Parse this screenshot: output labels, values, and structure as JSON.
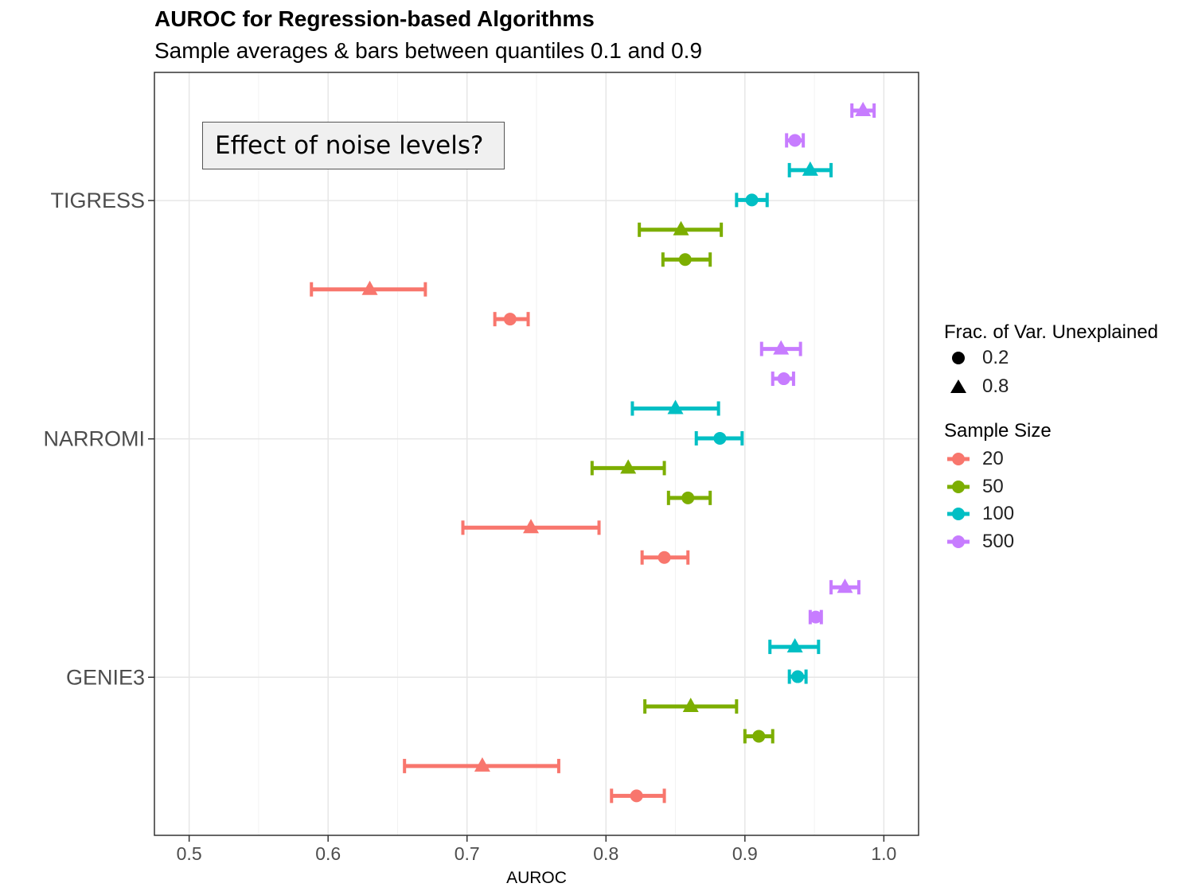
{
  "title": "AUROC for Regression-based Algorithms",
  "subtitle": "Sample averages & bars between quantiles 0.1 and 0.9",
  "annotation": "Effect of noise levels?",
  "legend": {
    "shape_title": "Frac. of Var. Unexplained",
    "shapes": [
      {
        "label": "0.2",
        "shape": "circle-icon"
      },
      {
        "label": "0.8",
        "shape": "triangle-icon"
      }
    ],
    "color_title": "Sample Size",
    "colors": [
      {
        "label": "20",
        "color": "#F8766D"
      },
      {
        "label": "50",
        "color": "#7CAE00"
      },
      {
        "label": "100",
        "color": "#00BFC4"
      },
      {
        "label": "500",
        "color": "#C77CFF"
      }
    ]
  },
  "chart_data": {
    "type": "scatter",
    "title": "AUROC for Regression-based Algorithms",
    "subtitle": "Sample averages & bars between quantiles 0.1 and 0.9",
    "xlabel": "AUROC",
    "ylabel": "",
    "xlim": [
      0.475,
      1.025
    ],
    "x_ticks": [
      "0.5",
      "0.6",
      "0.7",
      "0.8",
      "0.9",
      "1.0"
    ],
    "y_categories": [
      "TIGRESS",
      "NARROMI",
      "GENIE3"
    ],
    "grid": true,
    "legend_position": "right",
    "points": [
      {
        "algorithm": "TIGRESS",
        "sample_size": "500",
        "frac": "0.8",
        "mean": 0.985,
        "q10": 0.977,
        "q90": 0.993
      },
      {
        "algorithm": "TIGRESS",
        "sample_size": "500",
        "frac": "0.2",
        "mean": 0.936,
        "q10": 0.93,
        "q90": 0.942
      },
      {
        "algorithm": "TIGRESS",
        "sample_size": "100",
        "frac": "0.8",
        "mean": 0.947,
        "q10": 0.932,
        "q90": 0.962
      },
      {
        "algorithm": "TIGRESS",
        "sample_size": "100",
        "frac": "0.2",
        "mean": 0.905,
        "q10": 0.894,
        "q90": 0.916
      },
      {
        "algorithm": "TIGRESS",
        "sample_size": "50",
        "frac": "0.8",
        "mean": 0.854,
        "q10": 0.824,
        "q90": 0.883
      },
      {
        "algorithm": "TIGRESS",
        "sample_size": "50",
        "frac": "0.2",
        "mean": 0.857,
        "q10": 0.841,
        "q90": 0.875
      },
      {
        "algorithm": "TIGRESS",
        "sample_size": "20",
        "frac": "0.8",
        "mean": 0.63,
        "q10": 0.588,
        "q90": 0.67
      },
      {
        "algorithm": "TIGRESS",
        "sample_size": "20",
        "frac": "0.2",
        "mean": 0.731,
        "q10": 0.72,
        "q90": 0.744
      },
      {
        "algorithm": "NARROMI",
        "sample_size": "500",
        "frac": "0.8",
        "mean": 0.926,
        "q10": 0.912,
        "q90": 0.94
      },
      {
        "algorithm": "NARROMI",
        "sample_size": "500",
        "frac": "0.2",
        "mean": 0.928,
        "q10": 0.92,
        "q90": 0.935
      },
      {
        "algorithm": "NARROMI",
        "sample_size": "100",
        "frac": "0.8",
        "mean": 0.85,
        "q10": 0.819,
        "q90": 0.881
      },
      {
        "algorithm": "NARROMI",
        "sample_size": "100",
        "frac": "0.2",
        "mean": 0.882,
        "q10": 0.865,
        "q90": 0.898
      },
      {
        "algorithm": "NARROMI",
        "sample_size": "50",
        "frac": "0.8",
        "mean": 0.816,
        "q10": 0.79,
        "q90": 0.842
      },
      {
        "algorithm": "NARROMI",
        "sample_size": "50",
        "frac": "0.2",
        "mean": 0.859,
        "q10": 0.845,
        "q90": 0.875
      },
      {
        "algorithm": "NARROMI",
        "sample_size": "20",
        "frac": "0.8",
        "mean": 0.746,
        "q10": 0.697,
        "q90": 0.795
      },
      {
        "algorithm": "NARROMI",
        "sample_size": "20",
        "frac": "0.2",
        "mean": 0.842,
        "q10": 0.826,
        "q90": 0.859
      },
      {
        "algorithm": "GENIE3",
        "sample_size": "500",
        "frac": "0.8",
        "mean": 0.972,
        "q10": 0.962,
        "q90": 0.982
      },
      {
        "algorithm": "GENIE3",
        "sample_size": "500",
        "frac": "0.2",
        "mean": 0.951,
        "q10": 0.947,
        "q90": 0.955
      },
      {
        "algorithm": "GENIE3",
        "sample_size": "100",
        "frac": "0.8",
        "mean": 0.936,
        "q10": 0.918,
        "q90": 0.953
      },
      {
        "algorithm": "GENIE3",
        "sample_size": "100",
        "frac": "0.2",
        "mean": 0.938,
        "q10": 0.932,
        "q90": 0.944
      },
      {
        "algorithm": "GENIE3",
        "sample_size": "50",
        "frac": "0.8",
        "mean": 0.861,
        "q10": 0.828,
        "q90": 0.894
      },
      {
        "algorithm": "GENIE3",
        "sample_size": "50",
        "frac": "0.2",
        "mean": 0.91,
        "q10": 0.9,
        "q90": 0.92
      },
      {
        "algorithm": "GENIE3",
        "sample_size": "20",
        "frac": "0.8",
        "mean": 0.711,
        "q10": 0.655,
        "q90": 0.766
      },
      {
        "algorithm": "GENIE3",
        "sample_size": "20",
        "frac": "0.2",
        "mean": 0.822,
        "q10": 0.804,
        "q90": 0.842
      }
    ]
  }
}
